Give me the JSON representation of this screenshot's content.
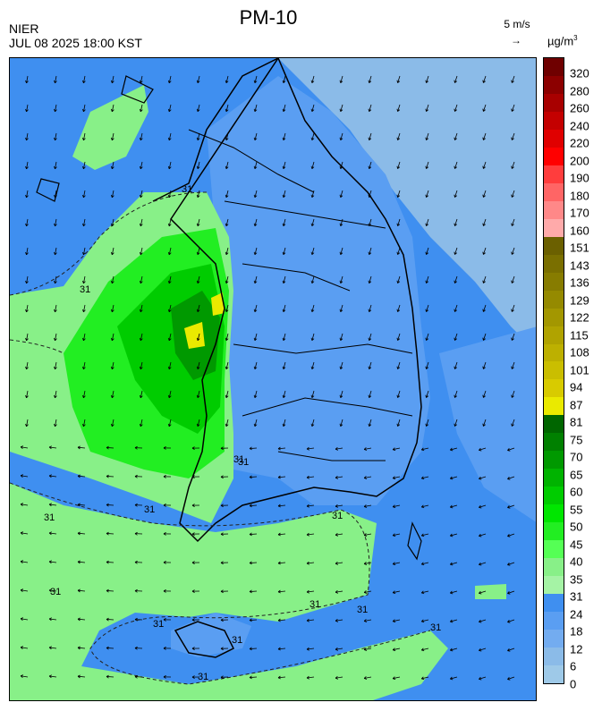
{
  "header": {
    "org": "NIER",
    "datetime": "JUL 08 2025 18:00 KST",
    "title": "PM-10",
    "wind_scale": "5 m/s",
    "wind_arrow": "→",
    "unit": "µg/m",
    "unit_exp": "3"
  },
  "legend": {
    "labels": [
      "320",
      "280",
      "260",
      "240",
      "220",
      "200",
      "190",
      "180",
      "170",
      "160",
      "151",
      "143",
      "136",
      "129",
      "122",
      "115",
      "108",
      "101",
      "94",
      "87",
      "81",
      "75",
      "70",
      "65",
      "60",
      "55",
      "50",
      "45",
      "40",
      "35",
      "31",
      "24",
      "18",
      "12",
      "6",
      "0"
    ],
    "colors": [
      "#6f0000",
      "#8c0000",
      "#a80000",
      "#c40000",
      "#e00000",
      "#ff0000",
      "#ff3d3d",
      "#ff6565",
      "#ff8888",
      "#ffaaaa",
      "#6b6000",
      "#7a6f00",
      "#877c00",
      "#958a00",
      "#a39700",
      "#b0a300",
      "#bdb000",
      "#cabe00",
      "#d8cb00",
      "#eaea00",
      "#006600",
      "#008000",
      "#009900",
      "#00b300",
      "#00cc00",
      "#00e600",
      "#22ee22",
      "#55ff55",
      "#88f088",
      "#a5f3a5",
      "#3f8ff0",
      "#5a9ef2",
      "#73acf0",
      "#8bbbe8",
      "#9ec9e8"
    ]
  },
  "map": {
    "contour_labels": [
      "31",
      "31",
      "31",
      "31",
      "31",
      "31",
      "31",
      "31",
      "31",
      "31",
      "31",
      "31",
      "31",
      "31"
    ],
    "fields": {
      "sea_blue": "#3f8ff0",
      "light_blue": "#8bbbe8",
      "land_blue": "#5a9ef2",
      "green_low": "#88f088",
      "green_mid": "#22ee22",
      "green_high": "#00cc00",
      "green_peak": "#009900",
      "yellow": "#eaea00"
    }
  }
}
